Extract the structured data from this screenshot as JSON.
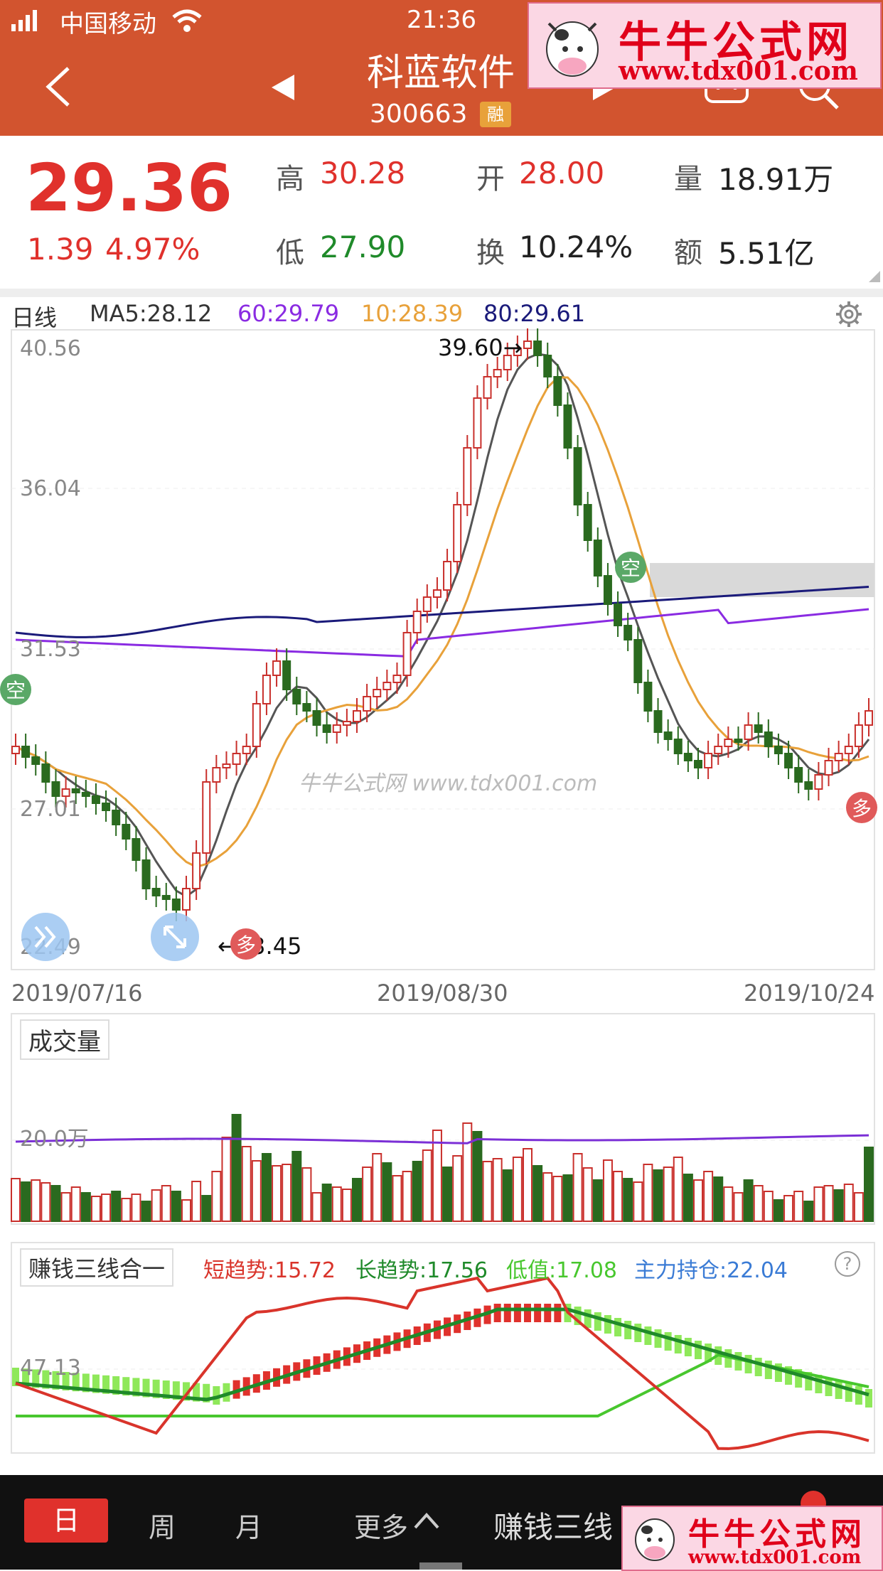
{
  "status": {
    "carrier": "中国移动",
    "time": "21:36"
  },
  "header": {
    "name": "科蓝软件",
    "code": "300663",
    "badge": "融"
  },
  "watermark": {
    "title": "牛牛公式网",
    "url": "www.tdx001.com",
    "center_text": "牛牛公式网 www.tdx001.com"
  },
  "quote": {
    "price": "29.36",
    "change": "1.39",
    "change_pct": "4.97%",
    "high_label": "高",
    "high": "30.28",
    "open_label": "开",
    "open": "28.00",
    "volume_label": "量",
    "volume": "18.91万",
    "low_label": "低",
    "low": "27.90",
    "turnover_label": "换",
    "turnover": "10.24%",
    "amount_label": "额",
    "amount": "5.51亿"
  },
  "kline": {
    "period_label": "日线",
    "ma": {
      "ma5": "MA5:28.12",
      "ma60": "60:29.79",
      "ma10": "10:28.39",
      "ma80": "80:29.61"
    },
    "y_ticks": [
      "40.56",
      "36.04",
      "31.53",
      "27.01",
      "22.49"
    ],
    "high_annotation": "39.60→",
    "low_annotation": "←23.45",
    "dates": [
      "2019/07/16",
      "2019/08/30",
      "2019/10/24"
    ],
    "signal_empty": "空",
    "signal_more": "多"
  },
  "volume_panel": {
    "title": "成交量",
    "tick": "20.0万"
  },
  "indicator_panel": {
    "title": "赚钱三线合一",
    "short_trend": "短趋势:15.72",
    "long_trend": "长趋势:17.56",
    "low_value": "低值:17.08",
    "main_hold": "主力持仓:22.04",
    "tick": "47.13",
    "help": "?"
  },
  "tabs": {
    "day": "日",
    "week": "周",
    "month": "月",
    "more": "更多",
    "indicator": "赚钱三线"
  },
  "colors": {
    "header_bg": "#d2542f",
    "up": "#c9302c",
    "down": "#2a6a1f",
    "ma5": "#555555",
    "ma10": "#e8a13a",
    "ma60": "#8a2be2",
    "ma80": "#1a1a7a",
    "short_trend": "#d9342b",
    "long_trend": "#1f8a2a",
    "low_value": "#48c72e",
    "main_hold": "#3a7bd5"
  }
}
